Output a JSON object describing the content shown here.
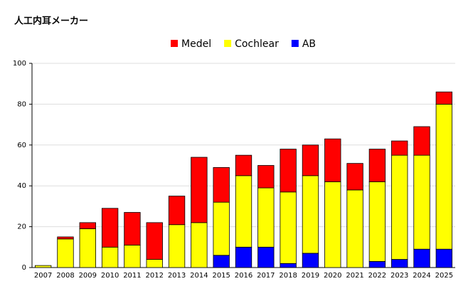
{
  "chart_data": {
    "type": "stacked-bar",
    "title": "人工内耳メーカー",
    "categories": [
      "2007",
      "2008",
      "2009",
      "2010",
      "2011",
      "2012",
      "2013",
      "2014",
      "2015",
      "2016",
      "2017",
      "2018",
      "2019",
      "2020",
      "2021",
      "2022",
      "2023",
      "2024",
      "2025"
    ],
    "series": [
      {
        "name": "Medel",
        "color": "#ff0000",
        "values": [
          0,
          1,
          3,
          19,
          16,
          18,
          14,
          32,
          17,
          10,
          11,
          21,
          15,
          21,
          13,
          16,
          7,
          14,
          6
        ]
      },
      {
        "name": "Cochlear",
        "color": "#ffff00",
        "values": [
          1,
          14,
          19,
          10,
          11,
          4,
          21,
          22,
          26,
          35,
          29,
          35,
          38,
          42,
          38,
          39,
          51,
          46,
          71
        ]
      },
      {
        "name": "AB",
        "color": "#0000ff",
        "values": [
          0,
          0,
          0,
          0,
          0,
          0,
          0,
          0,
          6,
          10,
          10,
          2,
          7,
          0,
          0,
          3,
          4,
          9,
          9
        ]
      }
    ],
    "ylim": [
      0,
      100
    ],
    "yticks": [
      0,
      20,
      40,
      60,
      80,
      100
    ],
    "grid": true,
    "legend": "top"
  }
}
